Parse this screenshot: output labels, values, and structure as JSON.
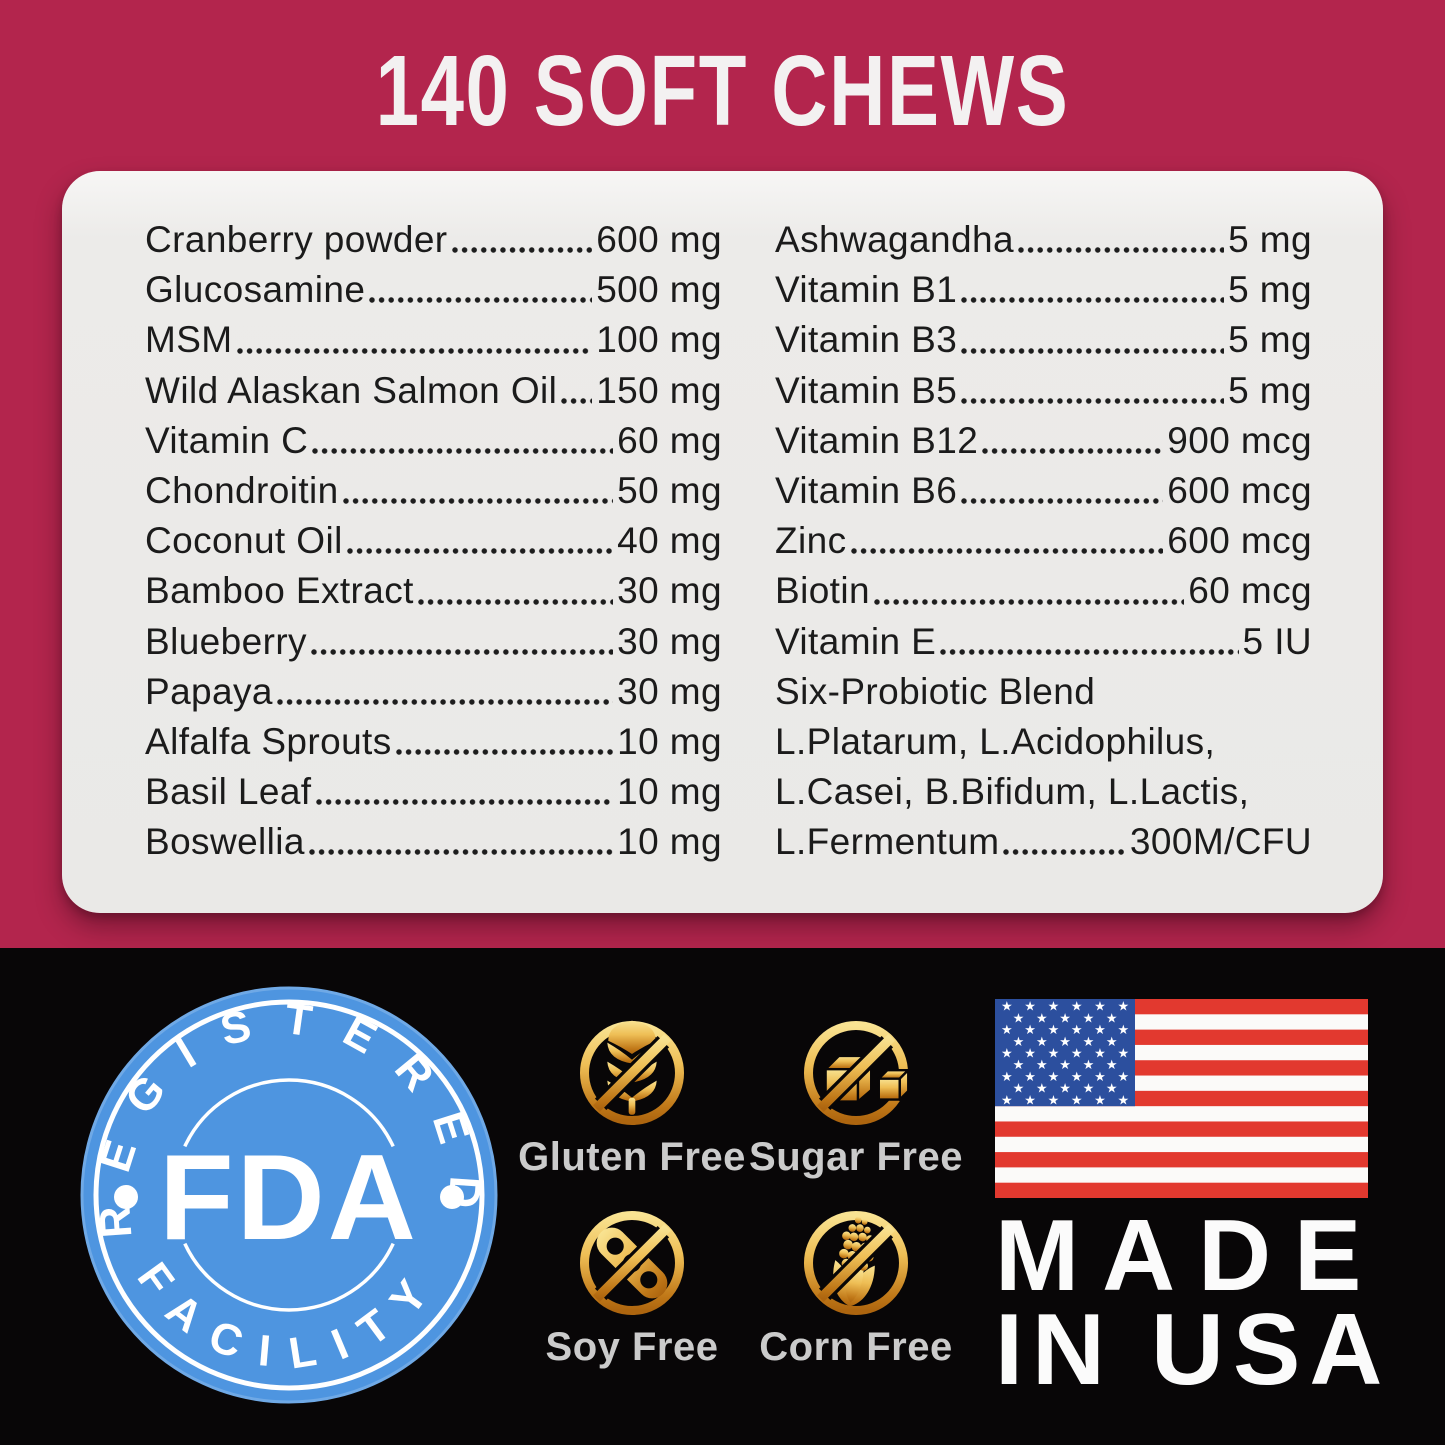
{
  "header": {
    "title": "140 SOFT CHEWS"
  },
  "panel": {
    "left": [
      {
        "name": "Cranberry powder",
        "value": "600 mg"
      },
      {
        "name": "Glucosamine",
        "value": "500 mg"
      },
      {
        "name": "MSM",
        "value": "100 mg"
      },
      {
        "name": "Wild Alaskan Salmon Oil",
        "value": "150 mg"
      },
      {
        "name": "Vitamin C",
        "value": "60 mg"
      },
      {
        "name": "Chondroitin",
        "value": "50 mg"
      },
      {
        "name": "Coconut Oil",
        "value": "40 mg"
      },
      {
        "name": "Bamboo Extract",
        "value": "30 mg"
      },
      {
        "name": "Blueberry",
        "value": "30 mg"
      },
      {
        "name": "Papaya",
        "value": "30 mg"
      },
      {
        "name": "Alfalfa Sprouts",
        "value": "10 mg"
      },
      {
        "name": "Basil Leaf",
        "value": "10 mg"
      },
      {
        "name": "Boswellia",
        "value": "10 mg"
      }
    ],
    "right": [
      {
        "name": "Ashwagandha",
        "value": "5 mg"
      },
      {
        "name": "Vitamin B1",
        "value": "5 mg"
      },
      {
        "name": "Vitamin B3",
        "value": "5 mg"
      },
      {
        "name": "Vitamin B5",
        "value": "5 mg"
      },
      {
        "name": "Vitamin B12",
        "value": "900 mcg"
      },
      {
        "name": "Vitamin B6",
        "value": "600 mcg"
      },
      {
        "name": "Zinc",
        "value": "600 mcg"
      },
      {
        "name": "Biotin",
        "value": "60 mcg"
      },
      {
        "name": "Vitamin E",
        "value": "5 IU"
      },
      {
        "name": "Six-Probiotic Blend",
        "value": ""
      },
      {
        "name": "L.Platarum, L.Acidophilus,",
        "value": ""
      },
      {
        "name": "L.Casei, B.Bifidum, L.Lactis,",
        "value": ""
      },
      {
        "name": "L.Fermentum",
        "value": "300M/CFU"
      }
    ]
  },
  "fda_badge": {
    "top": "REGISTERED",
    "center": "FDA",
    "bottom": "FACILITY"
  },
  "features": [
    {
      "label": "Gluten Free",
      "icon": "no-wheat-icon"
    },
    {
      "label": "Sugar Free",
      "icon": "no-sugar-icon"
    },
    {
      "label": "Soy Free",
      "icon": "no-soy-icon"
    },
    {
      "label": "Corn Free",
      "icon": "no-corn-icon"
    }
  ],
  "made_in_usa": {
    "line1": "MADE",
    "line2": "IN USA"
  },
  "colors": {
    "crimson_bg": "#B3254D",
    "card_bg": "#EAE9E7",
    "ink": "#1B1B1B",
    "black_band": "#080607",
    "badge_blue": "#4E95E0",
    "gold_light": "#F9E392",
    "gold_dark": "#AD650F",
    "label_gray": "#CBCBCB",
    "flag_red": "#E2392F",
    "flag_blue": "#2C4F9E",
    "title_white": "#F3F1F1"
  }
}
